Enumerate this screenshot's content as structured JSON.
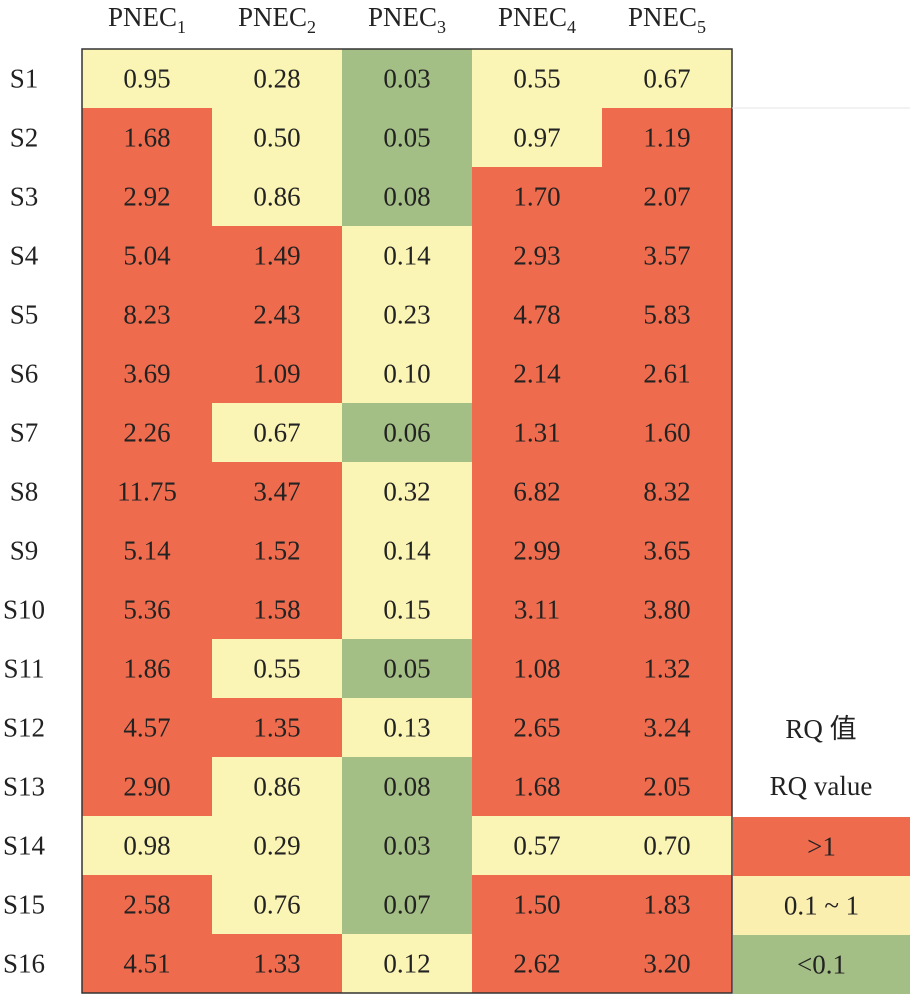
{
  "chart_data": {
    "type": "heatmap",
    "columns": [
      {
        "base": "PNEC",
        "sub": "1"
      },
      {
        "base": "PNEC",
        "sub": "2"
      },
      {
        "base": "PNEC",
        "sub": "3"
      },
      {
        "base": "PNEC",
        "sub": "4"
      },
      {
        "base": "PNEC",
        "sub": "5"
      }
    ],
    "rows": [
      "S1",
      "S2",
      "S3",
      "S4",
      "S5",
      "S6",
      "S7",
      "S8",
      "S9",
      "S10",
      "S11",
      "S12",
      "S13",
      "S14",
      "S15",
      "S16"
    ],
    "values": [
      [
        "0.95",
        "0.28",
        "0.03",
        "0.55",
        "0.67"
      ],
      [
        "1.68",
        "0.50",
        "0.05",
        "0.97",
        "1.19"
      ],
      [
        "2.92",
        "0.86",
        "0.08",
        "1.70",
        "2.07"
      ],
      [
        "5.04",
        "1.49",
        "0.14",
        "2.93",
        "3.57"
      ],
      [
        "8.23",
        "2.43",
        "0.23",
        "4.78",
        "5.83"
      ],
      [
        "3.69",
        "1.09",
        "0.10",
        "2.14",
        "2.61"
      ],
      [
        "2.26",
        "0.67",
        "0.06",
        "1.31",
        "1.60"
      ],
      [
        "11.75",
        "3.47",
        "0.32",
        "6.82",
        "8.32"
      ],
      [
        "5.14",
        "1.52",
        "0.14",
        "2.99",
        "3.65"
      ],
      [
        "5.36",
        "1.58",
        "0.15",
        "3.11",
        "3.80"
      ],
      [
        "1.86",
        "0.55",
        "0.05",
        "1.08",
        "1.32"
      ],
      [
        "4.57",
        "1.35",
        "0.13",
        "2.65",
        "3.24"
      ],
      [
        "2.90",
        "0.86",
        "0.08",
        "1.68",
        "2.05"
      ],
      [
        "0.98",
        "0.29",
        "0.03",
        "0.57",
        "0.70"
      ],
      [
        "2.58",
        "0.76",
        "0.07",
        "1.50",
        "1.83"
      ],
      [
        "4.51",
        "1.33",
        "0.12",
        "2.62",
        "3.20"
      ]
    ],
    "legend": {
      "title_zh": "RQ 值",
      "title_en": "RQ value",
      "items": [
        {
          "label": ">1",
          "color": "#EE6C4D"
        },
        {
          "label": "0.1 ~ 1",
          "color": "#FBEFB0"
        },
        {
          "label": "<0.1",
          "color": "#A4BF85"
        }
      ]
    },
    "colors": {
      "high": "#EE6C4D",
      "mid": "#FBF5B5",
      "low": "#A4BF85",
      "legend_mid": "#FCE3A8",
      "text": "#222222",
      "grid": "#333333"
    }
  }
}
